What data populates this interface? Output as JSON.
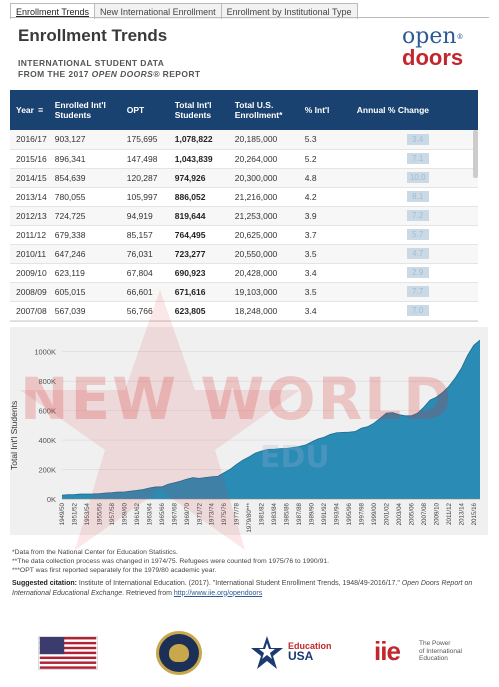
{
  "tabs": [
    "Enrollment Trends",
    "New International Enrollment",
    "Enrollment by Institutional Type"
  ],
  "title": "Enrollment Trends",
  "subtitle_line1": "INTERNATIONAL STUDENT DATA",
  "subtitle_line2_prefix": "FROM THE 2017 ",
  "subtitle_line2_em": "OPEN DOORS®",
  "subtitle_line2_suffix": " REPORT",
  "logo": {
    "open": "open",
    "doors": "doors",
    "reg": "®"
  },
  "table": {
    "headers": [
      "Year",
      "Enrolled Int'l Students",
      "OPT",
      "Total Int'l Students",
      "Total U.S. Enrollment*",
      "% Int'l",
      "Annual % Change"
    ],
    "rows": [
      [
        "2016/17",
        "903,127",
        "175,695",
        "1,078,822",
        "20,185,000",
        "5.3",
        "3.4"
      ],
      [
        "2015/16",
        "896,341",
        "147,498",
        "1,043,839",
        "20,264,000",
        "5.2",
        "7.1"
      ],
      [
        "2014/15",
        "854,639",
        "120,287",
        "974,926",
        "20,300,000",
        "4.8",
        "10.0"
      ],
      [
        "2013/14",
        "780,055",
        "105,997",
        "886,052",
        "21,216,000",
        "4.2",
        "8.1"
      ],
      [
        "2012/13",
        "724,725",
        "94,919",
        "819,644",
        "21,253,000",
        "3.9",
        "7.2"
      ],
      [
        "2011/12",
        "679,338",
        "85,157",
        "764,495",
        "20,625,000",
        "3.7",
        "5.7"
      ],
      [
        "2010/11",
        "647,246",
        "76,031",
        "723,277",
        "20,550,000",
        "3.5",
        "4.7"
      ],
      [
        "2009/10",
        "623,119",
        "67,804",
        "690,923",
        "20,428,000",
        "3.4",
        "2.9"
      ],
      [
        "2008/09",
        "605,015",
        "66,601",
        "671,616",
        "19,103,000",
        "3.5",
        "7.7"
      ],
      [
        "2007/08",
        "567,039",
        "56,766",
        "623,805",
        "18,248,000",
        "3.4",
        "7.0"
      ]
    ]
  },
  "watermark": {
    "main": "NEW WORLD",
    "sub": "EDU"
  },
  "chart_data": {
    "type": "area",
    "ylabel": "Total Int'l Students",
    "xlabel": "",
    "ylim": [
      0,
      1100000
    ],
    "yticks": [
      "0K",
      "200K",
      "400K",
      "600K",
      "800K",
      "1000K"
    ],
    "color": "#2a8bb5",
    "x": [
      "1949/50",
      "1950/51",
      "1951/52",
      "1952/53",
      "1953/54",
      "1954/55",
      "1955/56",
      "1956/57",
      "1957/58",
      "1958/59",
      "1959/60",
      "1960/61",
      "1961/62",
      "1962/63",
      "1963/64",
      "1964/65",
      "1965/66",
      "1966/67",
      "1967/68",
      "1968/69",
      "1969/70",
      "1970/71",
      "1971/72",
      "1972/73",
      "1973/74",
      "1974/75",
      "1975/76",
      "1976/77",
      "1977/78",
      "1978/79",
      "1979/80***",
      "1980/81",
      "1981/82",
      "1982/83",
      "1983/84",
      "1984/85",
      "1985/86",
      "1986/87",
      "1987/88",
      "1988/89",
      "1989/90",
      "1990/91",
      "1991/92",
      "1992/93",
      "1993/94",
      "1994/95",
      "1995/96",
      "1996/97",
      "1997/98",
      "1998/99",
      "1999/00",
      "2000/01",
      "2001/02",
      "2002/03",
      "2003/04",
      "2004/05",
      "2005/06",
      "2006/07",
      "2007/08",
      "2008/09",
      "2009/10",
      "2010/11",
      "2011/12",
      "2012/13",
      "2013/14",
      "2014/15",
      "2015/16",
      "2016/17"
    ],
    "values": [
      26433,
      29813,
      30462,
      33675,
      33833,
      34232,
      36494,
      40666,
      43391,
      47245,
      48486,
      53107,
      58086,
      64705,
      74814,
      82045,
      82709,
      100262,
      110315,
      121362,
      134959,
      144708,
      140126,
      146097,
      151066,
      154580,
      179344,
      203068,
      235509,
      263938,
      286343,
      311882,
      326299,
      336985,
      338894,
      342113,
      343777,
      349609,
      356187,
      366354,
      386851,
      407529,
      419585,
      438618,
      449749,
      452653,
      453787,
      457984,
      481280,
      490933,
      514723,
      547867,
      582996,
      586323,
      572509,
      565039,
      564766,
      582984,
      623805,
      671616,
      690923,
      723277,
      764495,
      819644,
      886052,
      974926,
      1043839,
      1078822
    ],
    "xticks_shown": [
      "1949/50",
      "1951/52",
      "1953/54",
      "1955/56",
      "1957/58",
      "1959/60",
      "1961/62",
      "1963/64",
      "1965/66",
      "1967/68",
      "1969/70",
      "1971/72",
      "1973/74",
      "1975/76",
      "1977/78",
      "1979/80***",
      "1981/82",
      "1983/84",
      "1985/86",
      "1987/88",
      "1989/90",
      "1991/92",
      "1993/94",
      "1995/96",
      "1997/98",
      "1999/00",
      "2001/02",
      "2003/04",
      "2005/06",
      "2007/08",
      "2009/10",
      "2011/12",
      "2013/14",
      "2015/16"
    ]
  },
  "notes": [
    "*Data from the National Center for Education Statistics.",
    "**The data collection process was changed in 1974/75. Refugees were counted from 1975/76 to 1990/91.",
    "***OPT was first reported separately for the 1979/80 academic year."
  ],
  "citation": {
    "label": "Suggested citation:",
    "text1": " Institute of International Education. (2017). \"International Student Enrollment Trends, 1948/49-2016/17.\" ",
    "italic": "Open Doors Report on International Educational Exchange",
    "text2": ". Retrieved from ",
    "link": "http://www.iie.org/opendoors"
  },
  "footer": {
    "edusa_top": "Education",
    "edusa_bottom": "USA",
    "iie_mark": "iie",
    "iie_line1": "The Power",
    "iie_line2": "of International",
    "iie_line3": "Education"
  }
}
